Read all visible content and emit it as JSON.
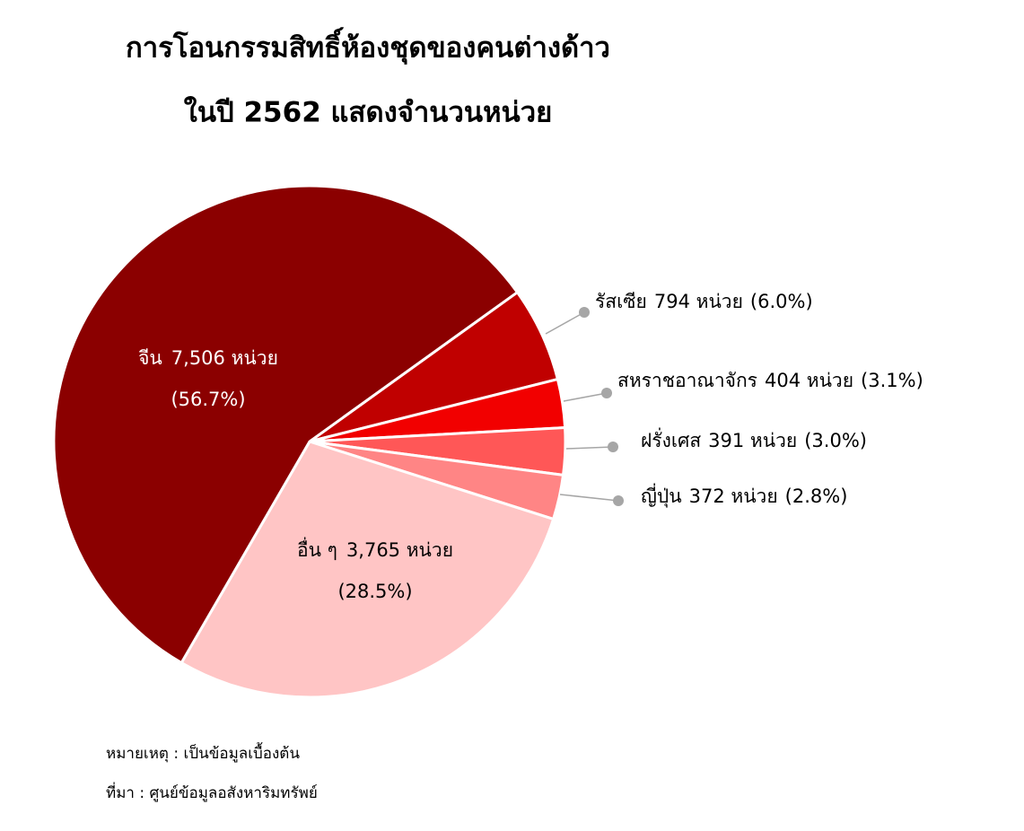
{
  "chart_data": {
    "type": "pie",
    "title": "การโอนกรรมสิทธิ์ห้องชุดของคนต่างด้าว",
    "subtitle": "ในปี 2562 แสดงจำนวนหน่วย",
    "categories": [
      "รัสเซีย",
      "สหราชอาณาจักร",
      "ฝรั่งเศส",
      "ญี่ปุ่น",
      "อื่น ๆ",
      "จีน"
    ],
    "values": [
      794,
      404,
      391,
      372,
      3765,
      7506
    ],
    "value_labels": [
      "794 หน่วย",
      "404 หน่วย",
      "391 หน่วย",
      "372 หน่วย",
      "3,765 หน่วย",
      "7,506 หน่วย"
    ],
    "percents": [
      6.0,
      3.1,
      3.0,
      2.8,
      28.5,
      56.7
    ],
    "percent_labels": [
      "(6.0%)",
      "(3.1%)",
      "(3.0%)",
      "(2.8%)",
      "(28.5%)",
      "(56.7%)"
    ],
    "colors": [
      "#c00000",
      "#f20000",
      "#ff5757",
      "#ff8585",
      "#ffc5c5",
      "#8b0000"
    ],
    "notes": [
      "หมายเหตุ : เป็นข้อมูลเบื้องต้น",
      "ที่มา : ศูนย์ข้อมูลอสังหาริมทรัพย์"
    ]
  }
}
